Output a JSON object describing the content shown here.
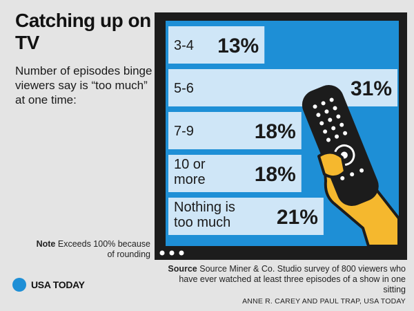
{
  "title": "Catching up on TV",
  "subtitle": "Number of episodes binge viewers say is “too much” at one time:",
  "note": {
    "label": "Note",
    "text": "Exceeds 100% because of rounding"
  },
  "source": {
    "label": "Source",
    "text": "Source Miner & Co. Studio survey of 800 viewers who have ever watched at least three episodes of a show in one sitting"
  },
  "credit": "ANNE R. CAREY AND PAUL TRAP, USA TODAY",
  "logo": "USA TODAY",
  "colors": {
    "screen": "#1e8fd6",
    "bar": "#cfe6f7",
    "frame": "#1c1c1c",
    "hand": "#f5b82e"
  },
  "chart_data": {
    "type": "bar",
    "orientation": "horizontal",
    "title": "Catching up on TV",
    "categories": [
      [
        "3-4"
      ],
      [
        "5-6"
      ],
      [
        "7-9"
      ],
      [
        "10 or",
        "more"
      ],
      [
        "Nothing is",
        "too much"
      ]
    ],
    "values": [
      13,
      31,
      18,
      18,
      21
    ],
    "value_labels": [
      "13%",
      "31%",
      "18%",
      "18%",
      "21%"
    ],
    "unit": "%",
    "xlim": [
      0,
      31
    ]
  }
}
